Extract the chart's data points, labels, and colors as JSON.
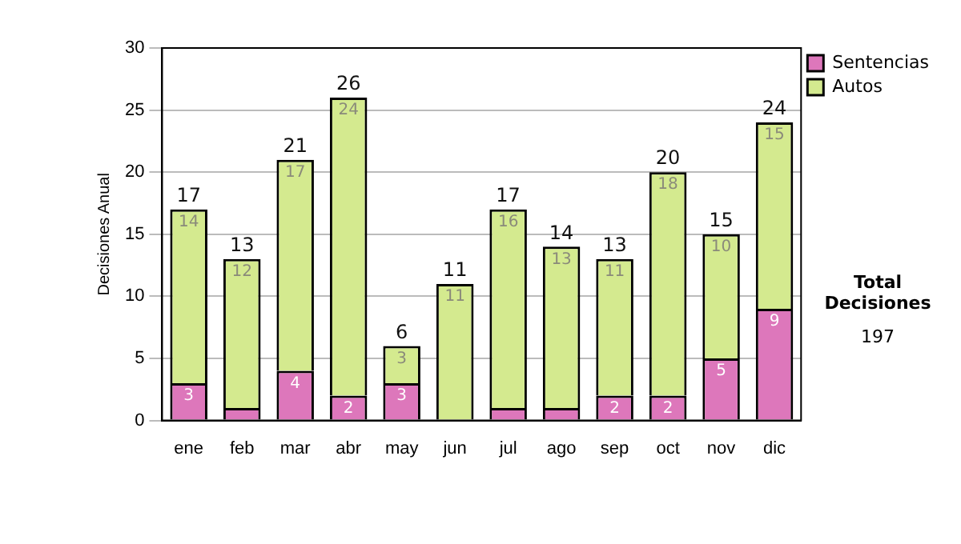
{
  "chart_data": {
    "type": "bar",
    "stacked": true,
    "ylabel": "Decisiones Anual",
    "categories": [
      "ene",
      "feb",
      "mar",
      "abr",
      "may",
      "jun",
      "jul",
      "ago",
      "sep",
      "oct",
      "nov",
      "dic"
    ],
    "series": [
      {
        "name": "Sentencias",
        "color": "#dd77bb",
        "values": [
          3,
          1,
          4,
          2,
          3,
          0,
          1,
          1,
          2,
          2,
          5,
          9
        ],
        "value_labels": [
          "3",
          null,
          "4",
          "2",
          "3",
          null,
          null,
          null,
          "2",
          "2",
          "5",
          "9"
        ]
      },
      {
        "name": "Autos",
        "color": "#d4ea8f",
        "values": [
          14,
          12,
          17,
          24,
          3,
          11,
          16,
          13,
          11,
          18,
          10,
          15
        ],
        "value_labels": [
          "14",
          "12",
          "17",
          "24",
          "3",
          "11",
          "16",
          "13",
          "11",
          "18",
          "10",
          "15"
        ]
      }
    ],
    "totals": [
      "17",
      "13",
      "21",
      "26",
      "6",
      "11",
      "17",
      "14",
      "13",
      "20",
      "15",
      "24"
    ],
    "ylim": [
      0,
      30
    ],
    "yticks": [
      0,
      5,
      10,
      15,
      20,
      25,
      30
    ],
    "grid": "y",
    "legend": "right",
    "annotations": [
      "Total Decisiones",
      "197"
    ]
  }
}
